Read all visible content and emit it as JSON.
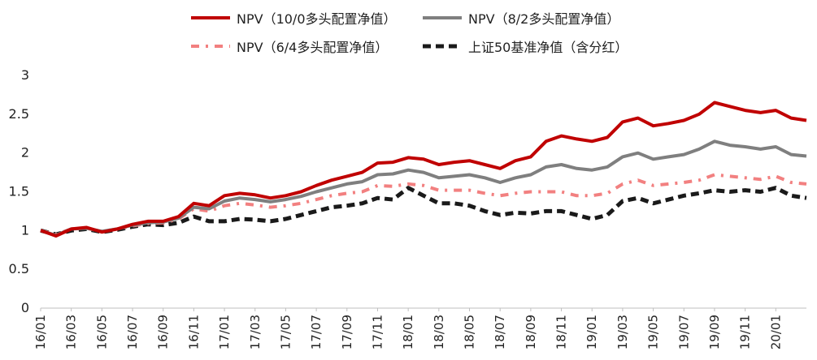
{
  "chart_data": {
    "type": "line",
    "title": "",
    "xlabel": "",
    "ylabel": "",
    "ylim": [
      0,
      3
    ],
    "yticks": [
      "0",
      "0.5",
      "1",
      "1.5",
      "2",
      "2.5",
      "3"
    ],
    "xticks": [
      "16/01",
      "16/03",
      "16/05",
      "16/07",
      "16/09",
      "16/11",
      "17/01",
      "17/03",
      "17/05",
      "17/07",
      "17/09",
      "17/11",
      "18/01",
      "18/03",
      "18/05",
      "18/07",
      "18/09",
      "18/11",
      "19/01",
      "19/03",
      "19/05",
      "19/07",
      "19/09",
      "19/11",
      "20/01"
    ],
    "x": [
      "16/01",
      "16/02",
      "16/03",
      "16/04",
      "16/05",
      "16/06",
      "16/07",
      "16/08",
      "16/09",
      "16/10",
      "16/11",
      "16/12",
      "17/01",
      "17/02",
      "17/03",
      "17/04",
      "17/05",
      "17/06",
      "17/07",
      "17/08",
      "17/09",
      "17/10",
      "17/11",
      "17/12",
      "18/01",
      "18/02",
      "18/03",
      "18/04",
      "18/05",
      "18/06",
      "18/07",
      "18/08",
      "18/09",
      "18/10",
      "18/11",
      "18/12",
      "19/01",
      "19/02",
      "19/03",
      "19/04",
      "19/05",
      "19/06",
      "19/07",
      "19/08",
      "19/09",
      "19/10",
      "19/11",
      "19/12",
      "20/01",
      "20/02",
      "20/03"
    ],
    "series": [
      {
        "name": "NPV（10/0多头配置净值）",
        "color": "#c00000",
        "style": "solid",
        "values": [
          1.0,
          0.93,
          1.02,
          1.04,
          0.98,
          1.02,
          1.08,
          1.12,
          1.12,
          1.18,
          1.35,
          1.32,
          1.45,
          1.48,
          1.46,
          1.42,
          1.45,
          1.5,
          1.58,
          1.65,
          1.7,
          1.75,
          1.87,
          1.88,
          1.94,
          1.92,
          1.85,
          1.88,
          1.9,
          1.85,
          1.8,
          1.9,
          1.95,
          2.15,
          2.22,
          2.18,
          2.15,
          2.2,
          2.4,
          2.45,
          2.35,
          2.38,
          2.42,
          2.5,
          2.65,
          2.6,
          2.55,
          2.52,
          2.55,
          2.45,
          2.42
        ]
      },
      {
        "name": "NPV（8/2多头配置净值）",
        "color": "#7f7f7f",
        "style": "solid",
        "values": [
          1.0,
          0.94,
          1.02,
          1.03,
          0.99,
          1.02,
          1.07,
          1.1,
          1.11,
          1.16,
          1.3,
          1.28,
          1.38,
          1.42,
          1.4,
          1.37,
          1.4,
          1.44,
          1.5,
          1.55,
          1.6,
          1.63,
          1.72,
          1.73,
          1.78,
          1.75,
          1.68,
          1.7,
          1.72,
          1.68,
          1.62,
          1.68,
          1.72,
          1.82,
          1.85,
          1.8,
          1.78,
          1.82,
          1.95,
          2.0,
          1.92,
          1.95,
          1.98,
          2.05,
          2.15,
          2.1,
          2.08,
          2.05,
          2.08,
          1.98,
          1.96
        ]
      },
      {
        "name": "NPV（6/4多头配置净值）",
        "color": "#f28080",
        "style": "dashdot",
        "values": [
          1.0,
          0.95,
          1.02,
          1.03,
          0.99,
          1.02,
          1.06,
          1.09,
          1.1,
          1.15,
          1.28,
          1.25,
          1.32,
          1.35,
          1.33,
          1.3,
          1.32,
          1.35,
          1.4,
          1.45,
          1.48,
          1.5,
          1.58,
          1.57,
          1.6,
          1.58,
          1.52,
          1.52,
          1.52,
          1.48,
          1.45,
          1.48,
          1.5,
          1.5,
          1.5,
          1.45,
          1.45,
          1.48,
          1.6,
          1.65,
          1.58,
          1.6,
          1.62,
          1.65,
          1.72,
          1.7,
          1.68,
          1.66,
          1.7,
          1.62,
          1.6
        ]
      },
      {
        "name": "上证50基准净值（含分红）",
        "color": "#1a1a1a",
        "style": "dashed",
        "values": [
          1.0,
          0.95,
          1.0,
          1.02,
          0.98,
          1.01,
          1.05,
          1.08,
          1.07,
          1.1,
          1.18,
          1.12,
          1.12,
          1.15,
          1.14,
          1.12,
          1.15,
          1.2,
          1.25,
          1.3,
          1.32,
          1.35,
          1.42,
          1.4,
          1.55,
          1.45,
          1.35,
          1.35,
          1.32,
          1.25,
          1.2,
          1.23,
          1.22,
          1.25,
          1.25,
          1.2,
          1.15,
          1.2,
          1.38,
          1.42,
          1.35,
          1.4,
          1.45,
          1.48,
          1.52,
          1.5,
          1.52,
          1.5,
          1.55,
          1.45,
          1.42
        ]
      }
    ],
    "legend": "top",
    "grid": false
  }
}
